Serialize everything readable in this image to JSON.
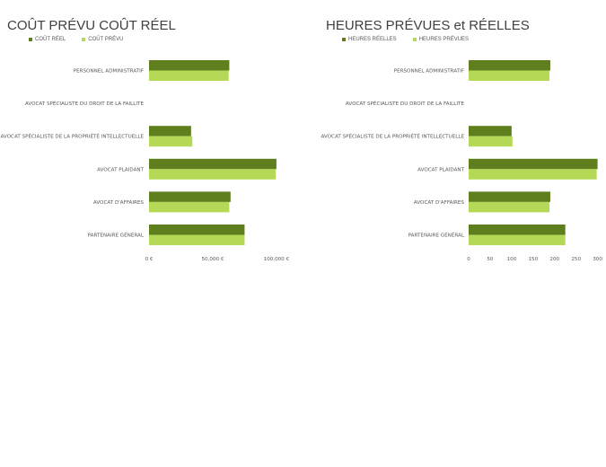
{
  "chart_data": [
    {
      "type": "bar",
      "orientation": "horizontal",
      "title": "COÛT PRÉVU COÛT RÉEL",
      "categories": [
        "PERSONNEL ADMINISTRATIF",
        "AVOCAT SPÉCIALISTE DU DROIT DE LA FAILLITE",
        "AVOCAT SPÉCIALISTE DE LA PROPRIÉTÉ INTELLECTUELLE",
        "AVOCAT PLAIDANT",
        "AVOCAT D'AFFAIRES",
        "PARTENAIRE GÉNÉRAL"
      ],
      "series": [
        {
          "name": "COÛT RÉEL",
          "color": "#5f7f1f",
          "values": [
            63000,
            0,
            33000,
            100000,
            64000,
            75000
          ]
        },
        {
          "name": "COÛT PRÉVU",
          "color": "#b5d957",
          "values": [
            62500,
            0,
            34000,
            99500,
            63000,
            75000
          ]
        }
      ],
      "xlim": [
        0,
        105000
      ],
      "ticks": [
        0,
        50000,
        100000
      ],
      "tick_labels": [
        "0 €",
        "50,000 €",
        "100,000 €"
      ],
      "legend": "top-left",
      "grid": false
    },
    {
      "type": "bar",
      "orientation": "horizontal",
      "title": "HEURES PRÉVUES et RÉELLES",
      "categories": [
        "PERSONNEL ADMINISTRATIF",
        "AVOCAT SPÉCIALISTE DU DROIT DE LA FAILLITE",
        "AVOCAT SPÉCIALISTE DE LA PROPRIÉTÉ INTELLECTUELLE",
        "AVOCAT PLAIDANT",
        "AVOCAT D'AFFAIRES",
        "PARTENAIRE GÉNÉRAL"
      ],
      "series": [
        {
          "name": "HEURES RÉELLES",
          "color": "#5f7f1f",
          "values": [
            190,
            0,
            100,
            300,
            190,
            225
          ]
        },
        {
          "name": "HEURES PRÉVUES",
          "color": "#b5d957",
          "values": [
            188,
            0,
            102,
            298,
            188,
            225
          ]
        }
      ],
      "xlim": [
        0,
        305
      ],
      "ticks": [
        0,
        50,
        100,
        150,
        200,
        250,
        300
      ],
      "tick_labels": [
        "0",
        "50",
        "100",
        "150",
        "200",
        "250",
        "300"
      ],
      "legend": "top-left",
      "grid": false
    }
  ]
}
